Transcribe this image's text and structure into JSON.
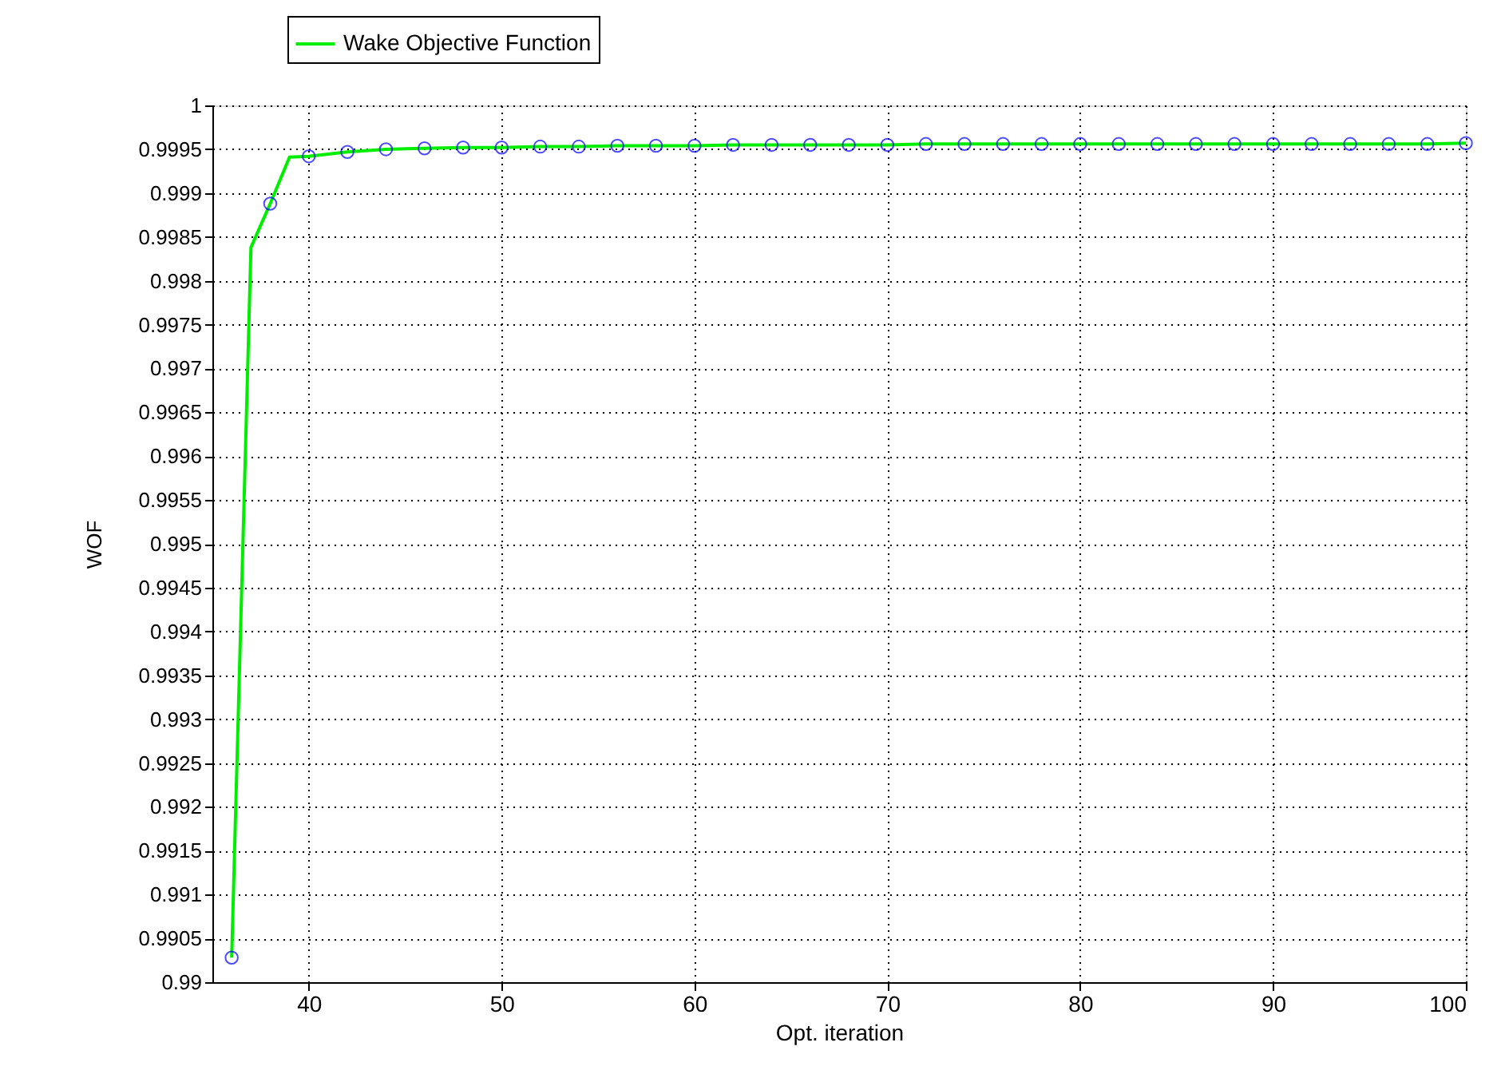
{
  "chart_data": {
    "type": "line",
    "xlabel": "Opt. iteration",
    "ylabel": "WOF",
    "xlim": [
      35,
      100
    ],
    "xticks": [
      40,
      50,
      60,
      70,
      80,
      90,
      100
    ],
    "ylim": [
      0.99,
      1
    ],
    "yticks": [
      0.99,
      0.9905,
      0.991,
      0.9915,
      0.992,
      0.9925,
      0.993,
      0.9935,
      0.994,
      0.9945,
      0.995,
      0.9955,
      0.996,
      0.9965,
      0.997,
      0.9975,
      0.998,
      0.9985,
      0.999,
      0.9995,
      1
    ],
    "grid": true,
    "legend": "top left",
    "series": [
      {
        "name": "Wake Objective Function",
        "color": "#00ee00",
        "marker": "none",
        "x": [
          36,
          37,
          38,
          39,
          40,
          42,
          44,
          46,
          48,
          50,
          52,
          54,
          56,
          58,
          60,
          62,
          64,
          66,
          68,
          70,
          72,
          74,
          76,
          78,
          80,
          82,
          84,
          86,
          88,
          90,
          92,
          94,
          96,
          98,
          100
        ],
        "values": [
          0.99028,
          0.99838,
          0.99888,
          0.99941,
          0.99942,
          0.99947,
          0.9995,
          0.99951,
          0.99952,
          0.99952,
          0.99953,
          0.99953,
          0.99954,
          0.99954,
          0.99954,
          0.99955,
          0.99955,
          0.99955,
          0.99955,
          0.99955,
          0.99956,
          0.99956,
          0.99956,
          0.99956,
          0.99956,
          0.99956,
          0.99956,
          0.99956,
          0.99956,
          0.99956,
          0.99956,
          0.99956,
          0.99956,
          0.99956,
          0.99957
        ]
      },
      {
        "type": "scatter",
        "color": "#0000ff",
        "marker": "circle",
        "x": [
          36,
          38,
          40,
          42,
          44,
          46,
          48,
          50,
          52,
          54,
          56,
          58,
          60,
          62,
          64,
          66,
          68,
          70,
          72,
          74,
          76,
          78,
          80,
          82,
          84,
          86,
          88,
          90,
          92,
          94,
          96,
          98,
          100
        ],
        "values": [
          0.99028,
          0.99888,
          0.99942,
          0.99947,
          0.9995,
          0.99951,
          0.99952,
          0.99952,
          0.99953,
          0.99953,
          0.99954,
          0.99954,
          0.99954,
          0.99955,
          0.99955,
          0.99955,
          0.99955,
          0.99955,
          0.99956,
          0.99956,
          0.99956,
          0.99956,
          0.99956,
          0.99956,
          0.99956,
          0.99956,
          0.99956,
          0.99956,
          0.99956,
          0.99956,
          0.99956,
          0.99956,
          0.99957
        ]
      }
    ]
  }
}
